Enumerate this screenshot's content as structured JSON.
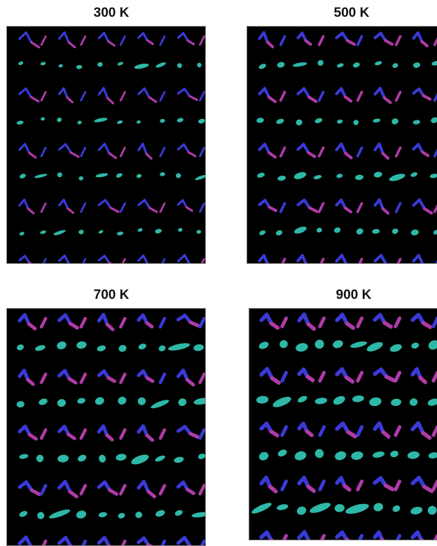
{
  "panels": [
    {
      "title": "300 K"
    },
    {
      "title": "500 K"
    },
    {
      "title": "700 K"
    },
    {
      "title": "900 K"
    }
  ],
  "colors": {
    "background": "#000000",
    "chain_blue": "#3a3ad8",
    "chain_magenta": "#b03aa8",
    "cyan_blob": "#2fb8a8"
  }
}
